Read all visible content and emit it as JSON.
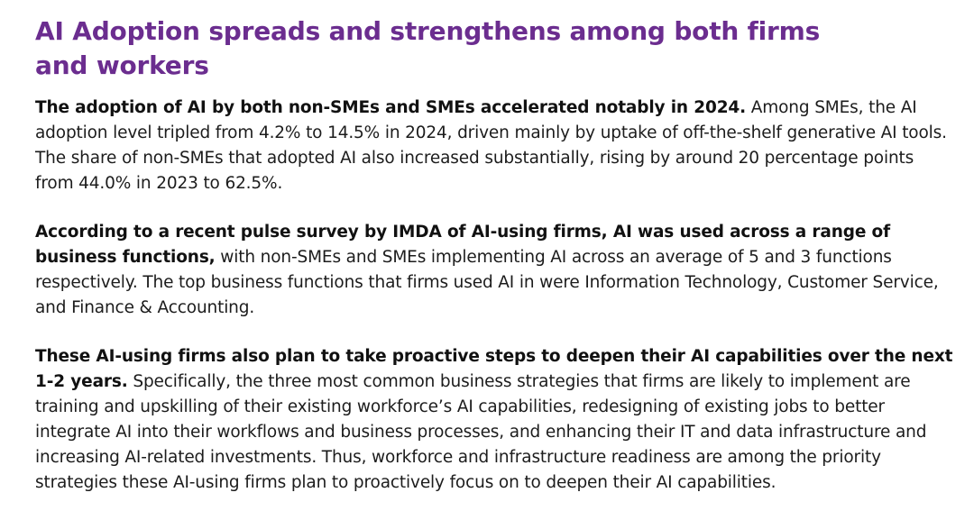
{
  "document": {
    "title": "AI Adoption spreads and strengthens among both firms and workers",
    "paragraphs": [
      {
        "lead": "The adoption of AI by both non-SMEs and SMEs accelerated notably in 2024.",
        "body": " Among SMEs, the AI adoption level tripled from 4.2% to 14.5% in 2024, driven mainly by uptake of off-the-shelf generative AI tools. The share of non-SMEs that adopted AI also increased substantially, rising by around 20 percentage points from 44.0% in 2023 to 62.5%."
      },
      {
        "lead": "According to a recent pulse survey by IMDA of AI-using firms, AI was used across a range of business functions,",
        "body": " with non-SMEs and SMEs implementing AI across an average of 5 and 3 functions respectively. The top business functions that firms used AI in were Information Technology, Customer Service, and Finance & Accounting."
      },
      {
        "lead": "These AI-using firms also plan to take proactive steps to deepen their AI capabilities over the next 1-2 years.",
        "body": " Specifically, the three most common business strategies that firms are likely to implement are training and upskilling of their existing workforce’s AI capabilities, redesigning of existing jobs to better integrate AI into their workflows and business processes, and enhancing their IT and data infrastructure and increasing AI-related investments. Thus, workforce and infrastructure readiness are among the priority strategies these AI-using firms plan to proactively focus on to deepen their AI capabilities."
      }
    ]
  },
  "colors": {
    "title": "#6b2d8f",
    "text": "#1c1c1c"
  }
}
